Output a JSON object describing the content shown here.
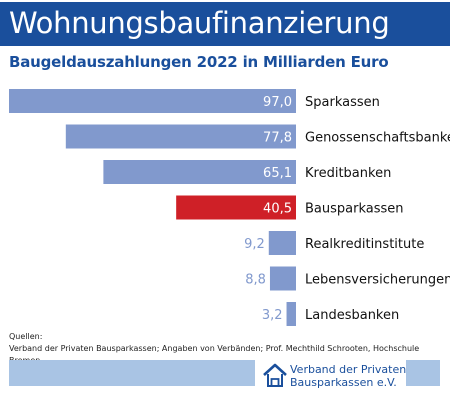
{
  "title": "Wohnungsbaufinanzierung",
  "subtitle": "Baugeldauszahlungen 2022 in Milliarden Euro",
  "sources": {
    "heading": "Quellen:",
    "text": "Verband der Privaten Bausparkassen; Angaben von Verbänden; Prof. Mechthild Schrooten, Hochschule Bremen"
  },
  "logo": {
    "line1": "Verband der Privaten",
    "line2": "Bausparkassen e.V.",
    "icon": "house-icon"
  },
  "colors": {
    "brand": "#1a4f9c",
    "bar": "#8199cd",
    "highlight": "#cf2027",
    "footer": "#a9c4e4"
  },
  "chart_data": {
    "type": "bar",
    "orientation": "horizontal",
    "categories": [
      "Sparkassen",
      "Genossenschaftsbanken",
      "Kreditbanken",
      "Bausparkassen",
      "Realkreditinstitute",
      "Lebensversicherungen",
      "Landesbanken"
    ],
    "values": [
      97.0,
      77.8,
      65.1,
      40.5,
      9.2,
      8.8,
      3.2
    ],
    "value_labels": [
      "97,0",
      "77,8",
      "65,1",
      "40,5",
      "9,2",
      "8,8",
      "3,2"
    ],
    "highlight_category": "Bausparkassen",
    "title": "Wohnungsbaufinanzierung",
    "xlabel": "",
    "ylabel": "",
    "xlim": [
      0,
      97.0
    ],
    "grid": false,
    "legend": "none"
  }
}
